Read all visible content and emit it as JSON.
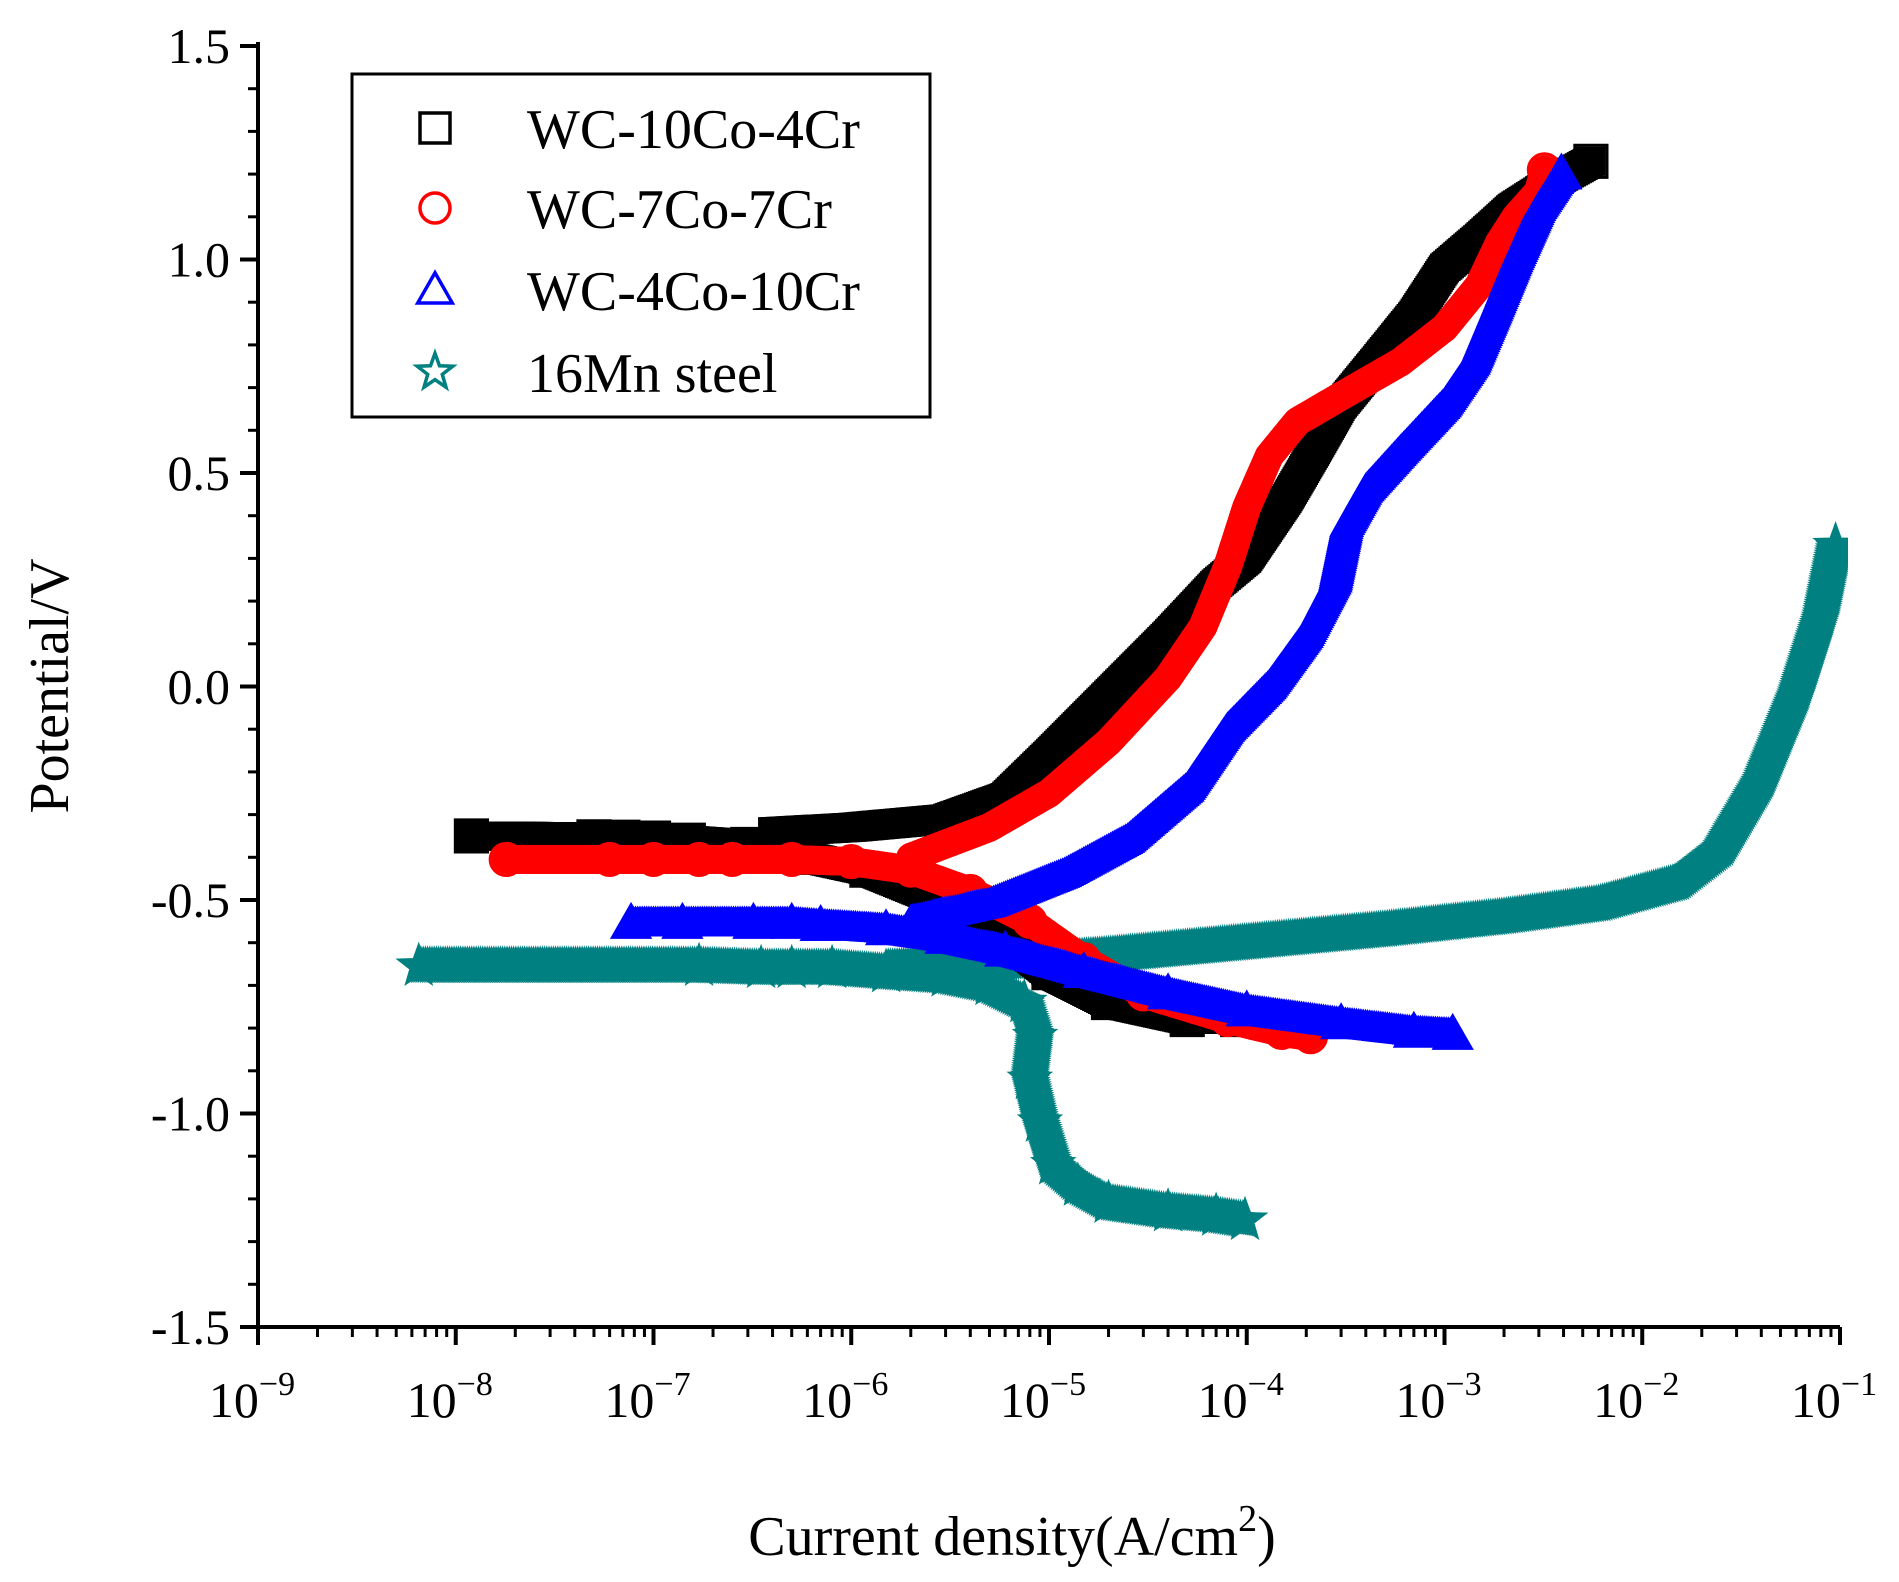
{
  "chart_data": {
    "type": "scatter",
    "title": "",
    "xlabel": "Current density(A/cm",
    "xlabel_sup": "2",
    "xlabel_end": ")",
    "ylabel": "Potential/V",
    "xscale": "log",
    "xlim": [
      1e-09,
      0.1
    ],
    "ylim": [
      -1.5,
      1.5
    ],
    "x_ticks": [
      {
        "base": "10",
        "exp": "−9"
      },
      {
        "base": "10",
        "exp": "−8"
      },
      {
        "base": "10",
        "exp": "−7"
      },
      {
        "base": "10",
        "exp": "−6"
      },
      {
        "base": "10",
        "exp": "−5"
      },
      {
        "base": "10",
        "exp": "−4"
      },
      {
        "base": "10",
        "exp": "−3"
      },
      {
        "base": "10",
        "exp": "−2"
      },
      {
        "base": "10",
        "exp": "−1"
      }
    ],
    "y_ticks": [
      "1.5",
      "1.0",
      "0.5",
      "0.0",
      "-0.5",
      "-1.0",
      "-1.5"
    ],
    "legend_position": "top-left",
    "series": [
      {
        "name": "WC-10Co-4Cr",
        "marker": "square",
        "color": "#000000",
        "cathodic": [
          [
            9e-05,
            -0.78
          ],
          [
            5e-05,
            -0.78
          ],
          [
            2e-05,
            -0.74
          ],
          [
            1e-05,
            -0.67
          ],
          [
            5e-06,
            -0.56
          ],
          [
            2.5e-06,
            -0.49
          ],
          [
            1.2e-06,
            -0.43
          ],
          [
            6e-07,
            -0.4
          ],
          [
            3e-07,
            -0.37
          ],
          [
            1.5e-07,
            -0.36
          ],
          [
            1e-07,
            -0.355
          ],
          [
            7e-08,
            -0.353
          ],
          [
            5e-08,
            -0.352
          ],
          [
            1.2e-08,
            -0.35
          ]
        ],
        "anodic": [
          [
            4e-07,
            -0.34
          ],
          [
            1e-06,
            -0.33
          ],
          [
            3e-06,
            -0.31
          ],
          [
            6e-06,
            -0.26
          ],
          [
            1e-05,
            -0.16
          ],
          [
            2e-05,
            -0.02
          ],
          [
            4e-05,
            0.12
          ],
          [
            7e-05,
            0.24
          ],
          [
            0.0001,
            0.3
          ],
          [
            0.00016,
            0.44
          ],
          [
            0.00022,
            0.55
          ],
          [
            0.0003,
            0.66
          ],
          [
            0.00045,
            0.76
          ],
          [
            0.0007,
            0.87
          ],
          [
            0.001,
            0.98
          ],
          [
            0.0015,
            1.05
          ],
          [
            0.0022,
            1.12
          ],
          [
            0.0035,
            1.18
          ],
          [
            0.0055,
            1.23
          ]
        ]
      },
      {
        "name": "WC-7Co-7Cr",
        "marker": "circle",
        "color": "#ff0000",
        "cathodic": [
          [
            0.00021,
            -0.82
          ],
          [
            0.00015,
            -0.81
          ],
          [
            8e-05,
            -0.78
          ],
          [
            3e-05,
            -0.72
          ],
          [
            1.5e-05,
            -0.64
          ],
          [
            8e-06,
            -0.55
          ],
          [
            4e-06,
            -0.48
          ],
          [
            2e-06,
            -0.43
          ],
          [
            1e-06,
            -0.41
          ],
          [
            5e-07,
            -0.405
          ],
          [
            2.5e-07,
            -0.405
          ],
          [
            1.7e-07,
            -0.405
          ],
          [
            1e-07,
            -0.405
          ],
          [
            6e-08,
            -0.405
          ],
          [
            1.8e-08,
            -0.405
          ]
        ],
        "anodic": [
          [
            2e-06,
            -0.4
          ],
          [
            5e-06,
            -0.33
          ],
          [
            1e-05,
            -0.25
          ],
          [
            2e-05,
            -0.13
          ],
          [
            4e-05,
            0.02
          ],
          [
            6e-05,
            0.14
          ],
          [
            8e-05,
            0.28
          ],
          [
            0.0001,
            0.42
          ],
          [
            0.00013,
            0.54
          ],
          [
            0.00018,
            0.62
          ],
          [
            0.0003,
            0.68
          ],
          [
            0.0006,
            0.76
          ],
          [
            0.001,
            0.84
          ],
          [
            0.0015,
            0.94
          ],
          [
            0.0019,
            1.04
          ],
          [
            0.0023,
            1.1
          ],
          [
            0.003,
            1.16
          ],
          [
            0.0032,
            1.21
          ]
        ]
      },
      {
        "name": "WC-4Co-10Cr",
        "marker": "triangle",
        "color": "#0000ff",
        "cathodic": [
          [
            0.0011,
            -0.815
          ],
          [
            0.0007,
            -0.81
          ],
          [
            0.0003,
            -0.79
          ],
          [
            0.0001,
            -0.76
          ],
          [
            4e-05,
            -0.72
          ],
          [
            1.5e-05,
            -0.67
          ],
          [
            6e-06,
            -0.62
          ],
          [
            3e-06,
            -0.59
          ],
          [
            1.5e-06,
            -0.57
          ],
          [
            7e-07,
            -0.56
          ],
          [
            5e-07,
            -0.555
          ],
          [
            3.2e-07,
            -0.555
          ],
          [
            1.4e-07,
            -0.555
          ],
          [
            7.7e-08,
            -0.555
          ]
        ],
        "anodic": [
          [
            2e-06,
            -0.55
          ],
          [
            5e-06,
            -0.51
          ],
          [
            1.2e-05,
            -0.44
          ],
          [
            2.5e-05,
            -0.36
          ],
          [
            5e-05,
            -0.24
          ],
          [
            8e-05,
            -0.1
          ],
          [
            0.00013,
            0.0
          ],
          [
            0.0002,
            0.12
          ],
          [
            0.00028,
            0.25
          ],
          [
            0.00032,
            0.38
          ],
          [
            0.0004,
            0.46
          ],
          [
            0.0006,
            0.55
          ],
          [
            0.001,
            0.66
          ],
          [
            0.0014,
            0.76
          ],
          [
            0.0018,
            0.88
          ],
          [
            0.0023,
            1.0
          ],
          [
            0.003,
            1.12
          ],
          [
            0.0039,
            1.2
          ]
        ]
      },
      {
        "name": "16Mn steel",
        "marker": "star",
        "color": "#008080",
        "cathodic": [
          [
            9.8e-05,
            -1.25
          ],
          [
            7e-05,
            -1.24
          ],
          [
            4e-05,
            -1.23
          ],
          [
            2e-05,
            -1.21
          ],
          [
            1.4e-05,
            -1.17
          ],
          [
            1.05e-05,
            -1.12
          ],
          [
            9e-06,
            -1.02
          ],
          [
            8e-06,
            -0.92
          ],
          [
            8.5e-06,
            -0.82
          ],
          [
            7.5e-06,
            -0.74
          ],
          [
            5e-06,
            -0.7
          ],
          [
            3e-06,
            -0.68
          ],
          [
            1.5e-06,
            -0.67
          ],
          [
            8e-07,
            -0.66
          ],
          [
            5e-07,
            -0.66
          ],
          [
            3.5e-07,
            -0.66
          ],
          [
            1.7e-07,
            -0.655
          ],
          [
            6.5e-09,
            -0.655
          ]
        ],
        "anodic": [
          [
            1.5e-06,
            -0.66
          ],
          [
            5e-06,
            -0.65
          ],
          [
            2e-05,
            -0.63
          ],
          [
            0.0001,
            -0.6
          ],
          [
            0.0005,
            -0.57
          ],
          [
            0.002,
            -0.54
          ],
          [
            0.006,
            -0.51
          ],
          [
            0.015,
            -0.46
          ],
          [
            0.025,
            -0.38
          ],
          [
            0.04,
            -0.22
          ],
          [
            0.06,
            -0.02
          ],
          [
            0.08,
            0.16
          ],
          [
            0.095,
            0.33
          ]
        ]
      }
    ]
  }
}
